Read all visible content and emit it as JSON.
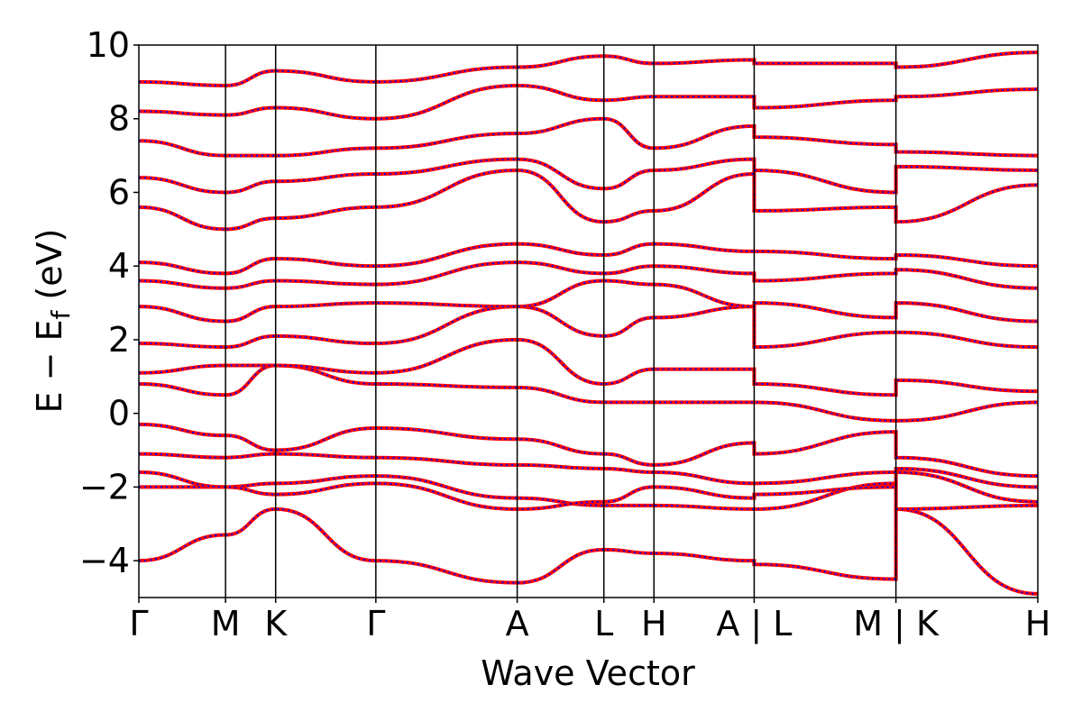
{
  "chart_data": {
    "type": "line",
    "xlabel": "Wave Vector",
    "ylabel": "E − E",
    "ylabel_subscript": "f",
    "ylabel_unit": "(eV)",
    "ylim": [
      -5,
      10
    ],
    "y_ticks": [
      "−4",
      "−2",
      "0",
      "2",
      "4",
      "6",
      "8",
      "10"
    ],
    "y_tick_values": [
      -4,
      -2,
      0,
      2,
      4,
      6,
      8,
      10
    ],
    "k_points": [
      {
        "label": "Γ",
        "x": 0.0
      },
      {
        "label": "M",
        "x": 0.628
      },
      {
        "label": "K",
        "x": 0.991
      },
      {
        "label": "Γ",
        "x": 1.717
      },
      {
        "label": "A",
        "x": 2.741
      },
      {
        "label": "L",
        "x": 3.369
      },
      {
        "label": "H",
        "x": 3.732
      },
      {
        "label": "A | L",
        "x": 4.458
      },
      {
        "label": "M | K",
        "x": 5.485
      },
      {
        "label": "H",
        "x": 6.513
      }
    ],
    "xlim": [
      0.0,
      6.513
    ],
    "series_colors": {
      "band_line": "#ff0000",
      "band_overlay": "#0000ff"
    },
    "grid": false,
    "bands": [
      {
        "x": [
          0.0,
          0.628,
          0.991,
          1.717,
          2.741,
          3.369,
          3.732,
          4.458,
          4.458,
          5.485,
          5.485,
          6.513
        ],
        "y": [
          -4.0,
          -3.3,
          -2.6,
          -4.0,
          -4.6,
          -3.7,
          -3.8,
          -4.0,
          -4.1,
          -4.5,
          -2.6,
          -4.9
        ]
      },
      {
        "x": [
          0.0,
          0.628,
          0.991,
          1.717,
          2.741,
          3.369,
          3.732,
          4.458,
          4.458,
          5.485,
          5.485,
          6.513
        ],
        "y": [
          -2.0,
          -2.0,
          -1.9,
          -1.7,
          -2.3,
          -2.5,
          -2.5,
          -2.6,
          -2.6,
          -1.9,
          -2.6,
          -2.5
        ]
      },
      {
        "x": [
          0.0,
          0.628,
          0.991,
          1.717,
          2.741,
          3.369,
          3.732,
          4.458,
          4.458,
          5.485,
          5.485,
          6.513
        ],
        "y": [
          -1.6,
          -2.0,
          -2.2,
          -1.9,
          -2.6,
          -2.4,
          -2.0,
          -2.3,
          -2.2,
          -2.0,
          -1.5,
          -2.0
        ]
      },
      {
        "x": [
          0.0,
          0.628,
          0.991,
          1.717,
          2.741,
          3.369,
          3.732,
          4.458,
          4.458,
          5.485,
          5.485,
          6.513
        ],
        "y": [
          -1.1,
          -1.2,
          -1.1,
          -1.2,
          -1.4,
          -1.5,
          -1.6,
          -1.9,
          -1.9,
          -1.6,
          -1.6,
          -2.4
        ]
      },
      {
        "x": [
          0.0,
          0.628,
          0.991,
          1.717,
          2.741,
          3.369,
          3.732,
          4.458,
          4.458,
          5.485,
          5.485,
          6.513
        ],
        "y": [
          -0.3,
          -0.6,
          -1.0,
          -0.4,
          -0.7,
          -1.1,
          -1.4,
          -0.8,
          -1.1,
          -0.5,
          -1.2,
          -1.7
        ]
      },
      {
        "x": [
          0.0,
          0.628,
          0.991,
          1.717,
          2.741,
          3.369,
          3.732,
          4.458,
          4.458,
          5.485,
          5.485,
          6.513
        ],
        "y": [
          0.8,
          0.5,
          1.3,
          0.8,
          0.7,
          0.3,
          0.3,
          0.3,
          0.3,
          -0.2,
          -0.2,
          0.3
        ]
      },
      {
        "x": [
          0.0,
          0.628,
          0.991,
          1.717,
          2.741,
          3.369,
          3.732,
          4.458,
          4.458,
          5.485,
          5.485,
          6.513
        ],
        "y": [
          1.1,
          1.3,
          1.3,
          1.1,
          2.0,
          0.8,
          1.2,
          1.2,
          0.8,
          0.5,
          0.9,
          0.6
        ]
      },
      {
        "x": [
          0.0,
          0.628,
          0.991,
          1.717,
          2.741,
          3.369,
          3.732,
          4.458,
          4.458,
          5.485,
          5.485,
          6.513
        ],
        "y": [
          1.9,
          1.8,
          2.1,
          1.9,
          2.9,
          2.1,
          2.6,
          2.9,
          1.8,
          2.2,
          2.2,
          1.8
        ]
      },
      {
        "x": [
          0.0,
          0.628,
          0.991,
          1.717,
          2.741,
          3.369,
          3.732,
          4.458,
          4.458,
          5.485,
          5.485,
          6.513
        ],
        "y": [
          2.9,
          2.5,
          2.9,
          3.0,
          2.9,
          3.6,
          3.5,
          2.9,
          3.0,
          2.6,
          3.0,
          2.5
        ]
      },
      {
        "x": [
          0.0,
          0.628,
          0.991,
          1.717,
          2.741,
          3.369,
          3.732,
          4.458,
          4.458,
          5.485,
          5.485,
          6.513
        ],
        "y": [
          3.6,
          3.4,
          3.6,
          3.5,
          4.1,
          3.8,
          4.0,
          3.8,
          3.6,
          3.8,
          3.9,
          3.4
        ]
      },
      {
        "x": [
          0.0,
          0.628,
          0.991,
          1.717,
          2.741,
          3.369,
          3.732,
          4.458,
          4.458,
          5.485,
          5.485,
          6.513
        ],
        "y": [
          4.1,
          3.8,
          4.2,
          4.0,
          4.6,
          4.3,
          4.6,
          4.4,
          4.4,
          4.2,
          4.3,
          4.0
        ]
      },
      {
        "x": [
          0.0,
          0.628,
          0.991,
          1.717,
          2.741,
          3.369,
          3.732,
          4.458,
          4.458,
          5.485,
          5.485,
          6.513
        ],
        "y": [
          5.6,
          5.0,
          5.3,
          5.6,
          6.6,
          5.2,
          5.5,
          6.5,
          5.5,
          5.6,
          5.2,
          6.2
        ]
      },
      {
        "x": [
          0.0,
          0.628,
          0.991,
          1.717,
          2.741,
          3.369,
          3.732,
          4.458,
          4.458,
          5.485,
          5.485,
          6.513
        ],
        "y": [
          6.4,
          6.0,
          6.3,
          6.5,
          6.9,
          6.1,
          6.6,
          6.9,
          6.6,
          6.0,
          6.7,
          6.6
        ]
      },
      {
        "x": [
          0.0,
          0.628,
          0.991,
          1.717,
          2.741,
          3.369,
          3.732,
          4.458,
          4.458,
          5.485,
          5.485,
          6.513
        ],
        "y": [
          7.4,
          7.0,
          7.0,
          7.2,
          7.6,
          8.0,
          7.2,
          7.8,
          7.5,
          7.3,
          7.1,
          7.0
        ]
      },
      {
        "x": [
          0.0,
          0.628,
          0.991,
          1.717,
          2.741,
          3.369,
          3.732,
          4.458,
          4.458,
          5.485,
          5.485,
          6.513
        ],
        "y": [
          8.2,
          8.1,
          8.3,
          8.0,
          8.9,
          8.5,
          8.6,
          8.6,
          8.3,
          8.5,
          8.6,
          8.8
        ]
      },
      {
        "x": [
          0.0,
          0.628,
          0.991,
          1.717,
          2.741,
          3.369,
          3.732,
          4.458,
          4.458,
          5.485,
          5.485,
          6.513
        ],
        "y": [
          9.0,
          8.9,
          9.3,
          9.0,
          9.4,
          9.7,
          9.5,
          9.6,
          9.5,
          9.5,
          9.4,
          9.8
        ]
      }
    ]
  }
}
